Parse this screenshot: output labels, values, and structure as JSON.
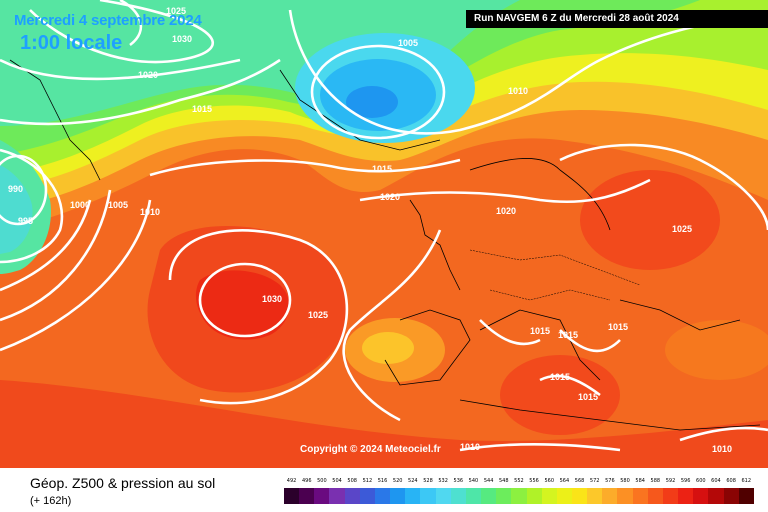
{
  "header": {
    "date": "Mercredi 4 septembre 2024",
    "time": "1:00 locale",
    "run": "Run NAVGEM 6 Z du Mercredi 28 août 2024"
  },
  "map": {
    "copyright": "Copyright © 2024 Meteociel.fr",
    "pressure_labels": [
      "1025",
      "1030",
      "1020",
      "1015",
      "990",
      "995",
      "1000",
      "1005",
      "1010",
      "1005",
      "1010",
      "1015",
      "1020",
      "1020",
      "1025",
      "1030",
      "1025",
      "1015",
      "1015",
      "1015",
      "1015",
      "1015",
      "1010",
      "1010"
    ]
  },
  "legend": {
    "title": "Géop. Z500 & pression au sol",
    "subtitle": "(+ 162h)",
    "scale_values": [
      "492",
      "496",
      "500",
      "504",
      "508",
      "512",
      "516",
      "520",
      "524",
      "528",
      "532",
      "536",
      "540",
      "544",
      "548",
      "552",
      "556",
      "560",
      "564",
      "568",
      "572",
      "576",
      "580",
      "584",
      "588",
      "592",
      "596",
      "600",
      "604",
      "608",
      "612"
    ],
    "scale_colors": [
      "#2b002b",
      "#4b0050",
      "#6a0a80",
      "#7a30b0",
      "#5a46c8",
      "#3c5ad8",
      "#2a78e8",
      "#1e96f0",
      "#28b4f5",
      "#3cc8f5",
      "#50d8f0",
      "#4ee0d0",
      "#4ee6a8",
      "#56ea80",
      "#6ced5c",
      "#8cf040",
      "#b0f228",
      "#d4f420",
      "#ecf018",
      "#fae418",
      "#fcc82a",
      "#fcac2a",
      "#fc9024",
      "#fa7420",
      "#f6581c",
      "#f23c18",
      "#ec2214",
      "#d61010",
      "#b40808",
      "#8a0404",
      "#500000"
    ]
  }
}
